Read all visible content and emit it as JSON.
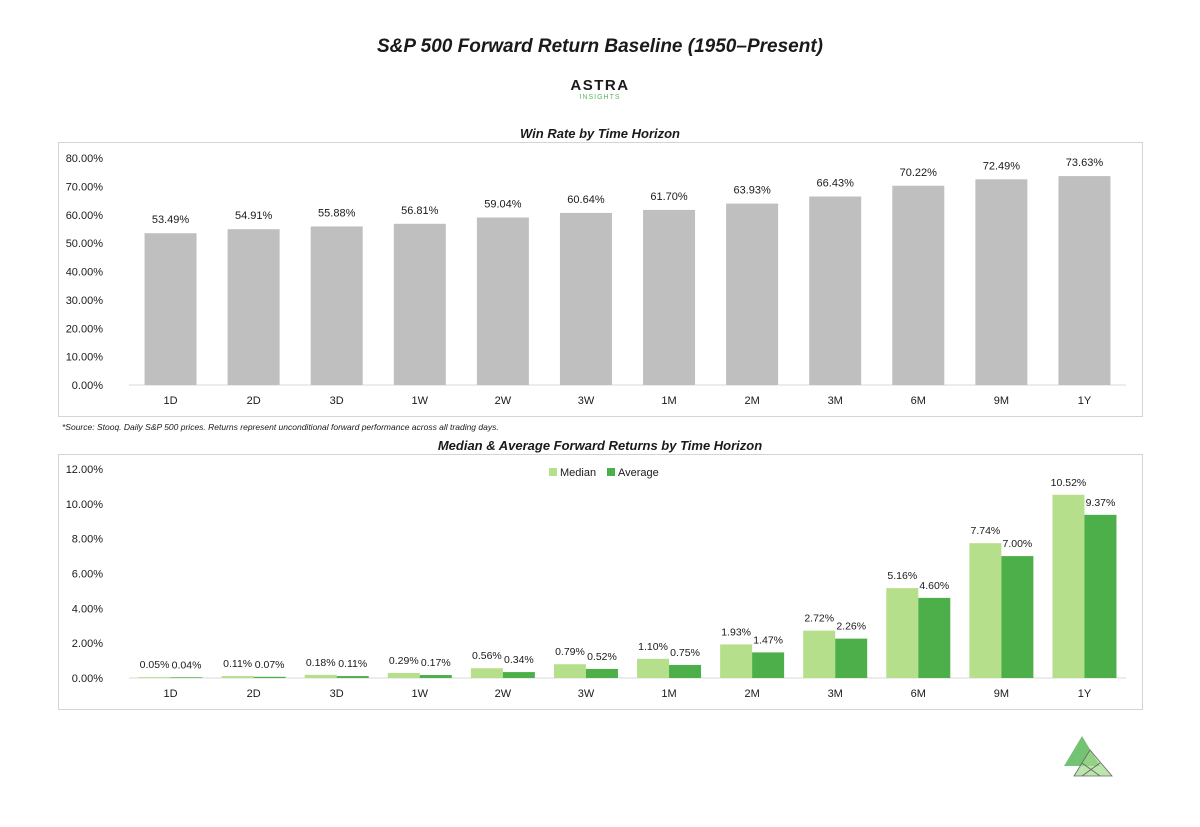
{
  "page": {
    "title": "S&P 500 Forward Return Baseline (1950–Present)",
    "brand_name": "ASTRA",
    "brand_sub": "INSIGHTS",
    "source_note": "*Source: Stooq. Daily S&P 500 prices. Returns represent unconditional forward performance across all trading days."
  },
  "colors": {
    "win_bar": "#bfbfbf",
    "median": "#b5df8a",
    "average": "#4caf4a",
    "axis": "#d9d9d9",
    "text": "#1a1a1a"
  },
  "chart_data": [
    {
      "type": "bar",
      "title": "Win Rate by Time Horizon",
      "categories": [
        "1D",
        "2D",
        "3D",
        "1W",
        "2W",
        "3W",
        "1M",
        "2M",
        "3M",
        "6M",
        "9M",
        "1Y"
      ],
      "values": [
        53.49,
        54.91,
        55.88,
        56.81,
        59.04,
        60.64,
        61.7,
        63.93,
        66.43,
        70.22,
        72.49,
        73.63
      ],
      "data_labels": [
        "53.49%",
        "54.91%",
        "55.88%",
        "56.81%",
        "59.04%",
        "60.64%",
        "61.70%",
        "63.93%",
        "66.43%",
        "70.22%",
        "72.49%",
        "73.63%"
      ],
      "ylim": [
        0,
        80
      ],
      "yticks": [
        "0.00%",
        "10.00%",
        "20.00%",
        "30.00%",
        "40.00%",
        "50.00%",
        "60.00%",
        "70.00%",
        "80.00%"
      ],
      "grid": false,
      "legend": "none"
    },
    {
      "type": "bar",
      "title": "Median & Average Forward Returns by Time Horizon",
      "categories": [
        "1D",
        "2D",
        "3D",
        "1W",
        "2W",
        "3W",
        "1M",
        "2M",
        "3M",
        "6M",
        "9M",
        "1Y"
      ],
      "series": [
        {
          "name": "Median",
          "values": [
            0.05,
            0.11,
            0.18,
            0.29,
            0.56,
            0.79,
            1.1,
            1.93,
            2.72,
            5.16,
            7.74,
            10.52
          ],
          "data_labels": [
            "0.05%",
            "0.11%",
            "0.18%",
            "0.29%",
            "0.56%",
            "0.79%",
            "1.10%",
            "1.93%",
            "2.72%",
            "5.16%",
            "7.74%",
            "10.52%"
          ]
        },
        {
          "name": "Average",
          "values": [
            0.04,
            0.07,
            0.11,
            0.17,
            0.34,
            0.52,
            0.75,
            1.47,
            2.26,
            4.6,
            7.0,
            9.37
          ],
          "data_labels": [
            "0.04%",
            "0.07%",
            "0.11%",
            "0.17%",
            "0.34%",
            "0.52%",
            "0.75%",
            "1.47%",
            "2.26%",
            "4.60%",
            "7.00%",
            "9.37%"
          ]
        }
      ],
      "ylim": [
        0,
        12
      ],
      "yticks": [
        "0.00%",
        "2.00%",
        "4.00%",
        "6.00%",
        "8.00%",
        "10.00%",
        "12.00%"
      ],
      "grid": false,
      "legend": "top-center"
    }
  ]
}
